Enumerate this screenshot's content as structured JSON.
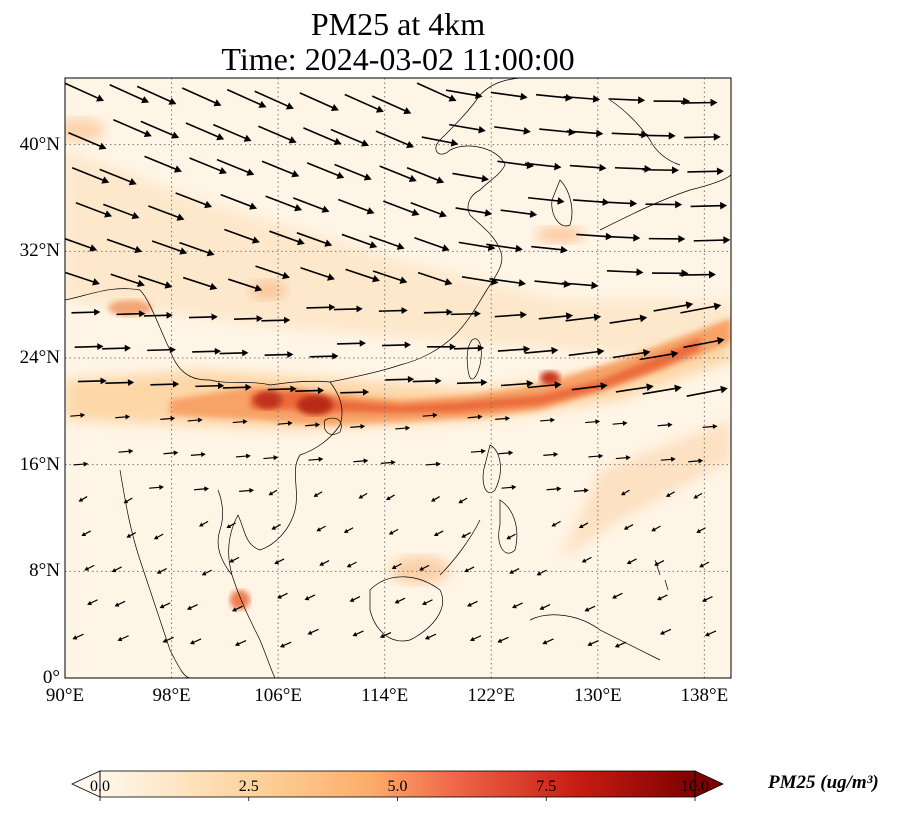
{
  "title_line1": "PM25 at 4km",
  "title_line2": "Time: 2024-03-02 11:00:00",
  "map": {
    "lon_range": [
      90,
      140
    ],
    "lat_range": [
      0,
      45
    ],
    "lon_ticks": [
      90,
      98,
      106,
      114,
      122,
      130,
      138
    ],
    "lat_ticks": [
      0,
      8,
      16,
      24,
      32,
      40
    ],
    "lon_tick_labels": [
      "90°E",
      "98°E",
      "106°E",
      "114°E",
      "122°E",
      "130°E",
      "138°E"
    ],
    "lat_tick_labels": [
      "0°",
      "8°N",
      "16°N",
      "24°N",
      "32°N",
      "40°N"
    ],
    "gridlines": "dotted"
  },
  "colorbar": {
    "label": "PM25 (ug/m³)",
    "min": 0.0,
    "max": 10.0,
    "ticks": [
      "0.0",
      "2.5",
      "5.0",
      "7.5",
      "10.0"
    ],
    "colormap": "OrRd",
    "extend": "both"
  },
  "colors": {
    "low": "#fff7ec",
    "mid": "#fdbb84",
    "high": "#d7301f",
    "max": "#7f0000"
  }
}
